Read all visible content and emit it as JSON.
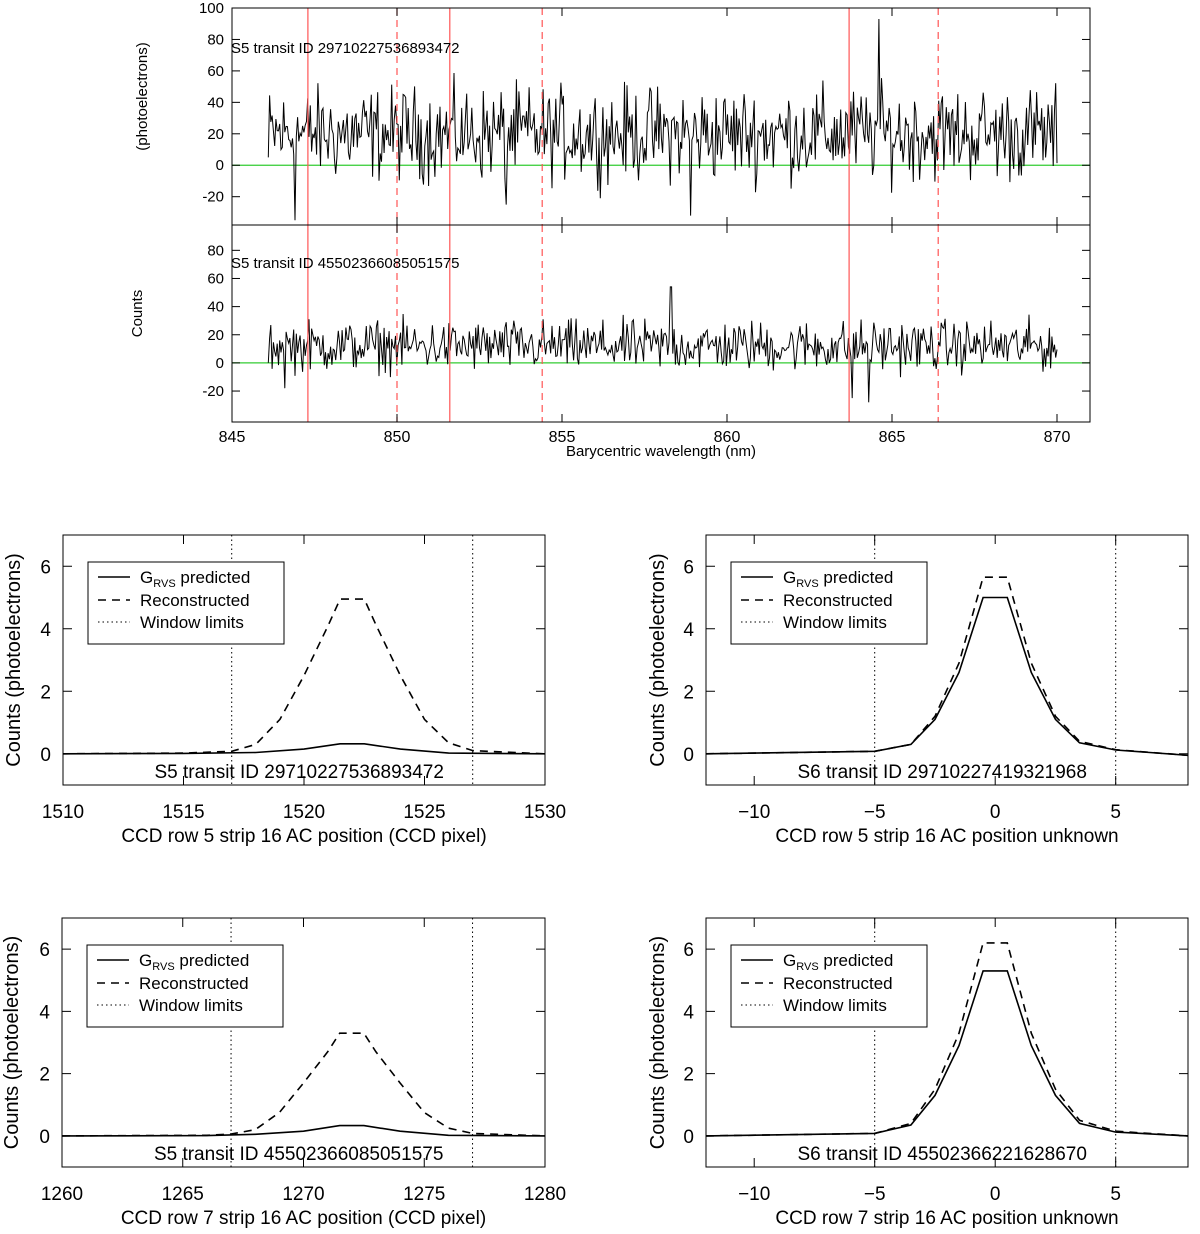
{
  "spectrum": {
    "xlabel": "Barycentric wavelength (nm)",
    "xlim": [
      845,
      871
    ],
    "xticks": [
      845,
      850,
      855,
      860,
      865,
      870
    ],
    "ref_lines_solid": [
      847.3,
      851.6,
      863.7
    ],
    "ref_lines_dashed": [
      850.0,
      854.4,
      866.4
    ],
    "colors": {
      "signal": "#000000",
      "zero_line": "#33cc33",
      "ref_line": "#ff5555"
    },
    "panels": [
      {
        "label": "S5 transit ID 29710227536893472",
        "ylabel": "(photoelectrons)",
        "ylim": [
          -38,
          100
        ],
        "yticks": [
          -20,
          0,
          20,
          40,
          60,
          80,
          100
        ],
        "x_start": 846.1,
        "x_end": 870.0,
        "noise_amplitude": 18,
        "spikes": [
          [
            846.9,
            -35
          ],
          [
            858.9,
            -32
          ],
          [
            864.6,
            93
          ],
          [
            853.3,
            -25
          ]
        ]
      },
      {
        "label": "S5 transit ID 45502366085051575",
        "ylabel": "Counts",
        "ylim": [
          -42,
          98
        ],
        "yticks": [
          -20,
          0,
          20,
          40,
          60,
          80
        ],
        "x_start": 846.1,
        "x_end": 870.0,
        "noise_amplitude": 11,
        "spikes": [
          [
            858.3,
            54
          ],
          [
            863.8,
            -25
          ],
          [
            864.3,
            -28
          ],
          [
            846.6,
            -18
          ]
        ]
      }
    ]
  },
  "profiles": {
    "ylabel": "Counts (photoelectrons)",
    "legend": {
      "g_prefix": "G",
      "g_sub": "RVS",
      "g_suffix": " predicted",
      "reconstructed": "Reconstructed",
      "window": "Window limits"
    },
    "panels": [
      {
        "id": "p1",
        "title": "S5 transit ID 29710227536893472",
        "xlabel": "CCD row 5 strip 16 AC position (CCD pixel)",
        "xlim": [
          1510,
          1530
        ],
        "xticks": [
          1510,
          1515,
          1520,
          1525,
          1530
        ],
        "ylim": [
          -1,
          7
        ],
        "yticks": [
          0,
          2,
          4,
          6
        ],
        "window": [
          1517,
          1527
        ],
        "predicted": {
          "x": [
            1510,
            1515,
            1518,
            1520,
            1521.5,
            1522.5,
            1524,
            1526,
            1530
          ],
          "y": [
            0,
            0.01,
            0.04,
            0.15,
            0.32,
            0.32,
            0.15,
            0.02,
            0
          ]
        },
        "reconstructed": {
          "x": [
            1510,
            1515,
            1517,
            1518,
            1519,
            1520,
            1521,
            1521.5,
            1522.5,
            1523,
            1524,
            1525,
            1526,
            1527,
            1530
          ],
          "y": [
            0,
            0.02,
            0.08,
            0.3,
            1.1,
            2.5,
            4.1,
            4.95,
            4.95,
            4.1,
            2.5,
            1.1,
            0.35,
            0.1,
            0
          ]
        }
      },
      {
        "id": "p2",
        "title": "S6 transit ID 29710227419321968",
        "xlabel": "CCD row 5 strip 16 AC position unknown",
        "xlim": [
          -12,
          8
        ],
        "xticks": [
          -10,
          -5,
          0,
          5
        ],
        "ylim": [
          -1,
          7
        ],
        "yticks": [
          0,
          2,
          4,
          6
        ],
        "window": [
          -5,
          5
        ],
        "predicted": {
          "x": [
            -12,
            -5,
            -3.5,
            -2.5,
            -1.5,
            -0.5,
            0.5,
            1.5,
            2.5,
            3.5,
            5,
            8
          ],
          "y": [
            0,
            0.08,
            0.3,
            1.1,
            2.6,
            5.0,
            5.0,
            2.6,
            1.1,
            0.35,
            0.12,
            -0.05
          ]
        },
        "reconstructed": {
          "x": [
            -12,
            -5,
            -3.5,
            -2.5,
            -1.5,
            -0.5,
            0.5,
            1.5,
            2.5,
            3.5,
            5,
            8
          ],
          "y": [
            0,
            0.08,
            0.3,
            1.2,
            2.9,
            5.65,
            5.65,
            2.9,
            1.2,
            0.4,
            0.13,
            -0.05
          ]
        }
      },
      {
        "id": "p3",
        "title": "S5 transit ID 45502366085051575",
        "xlabel": "CCD row 7 strip 16 AC position (CCD pixel)",
        "xlim": [
          1260,
          1280
        ],
        "xticks": [
          1260,
          1265,
          1270,
          1275,
          1280
        ],
        "ylim": [
          -1,
          7
        ],
        "yticks": [
          0,
          2,
          4,
          6
        ],
        "window": [
          1267,
          1277
        ],
        "predicted": {
          "x": [
            1260,
            1266,
            1268,
            1270,
            1271.5,
            1272.5,
            1274,
            1276,
            1280
          ],
          "y": [
            0,
            0.01,
            0.05,
            0.15,
            0.33,
            0.33,
            0.15,
            0.02,
            0
          ]
        },
        "reconstructed": {
          "x": [
            1260,
            1266,
            1267,
            1268,
            1269,
            1270,
            1271,
            1271.5,
            1272.5,
            1273,
            1274,
            1275,
            1276,
            1277,
            1280
          ],
          "y": [
            0,
            0.02,
            0.06,
            0.2,
            0.75,
            1.7,
            2.7,
            3.3,
            3.3,
            2.7,
            1.7,
            0.75,
            0.25,
            0.08,
            0
          ]
        }
      },
      {
        "id": "p4",
        "title": "S6 transit ID 45502366221628670",
        "xlabel": "CCD row 7 strip 16 AC position unknown",
        "xlim": [
          -12,
          8
        ],
        "xticks": [
          -10,
          -5,
          0,
          5
        ],
        "ylim": [
          -1,
          7
        ],
        "yticks": [
          0,
          2,
          4,
          6
        ],
        "window": [
          -5,
          5
        ],
        "predicted": {
          "x": [
            -12,
            -5,
            -3.5,
            -2.5,
            -1.5,
            -0.5,
            0.5,
            1.5,
            2.5,
            3.5,
            5,
            8
          ],
          "y": [
            0,
            0.08,
            0.35,
            1.3,
            2.9,
            5.3,
            5.3,
            2.9,
            1.3,
            0.4,
            0.12,
            0
          ]
        },
        "reconstructed": {
          "x": [
            -12,
            -5,
            -3.5,
            -2.5,
            -1.5,
            -0.5,
            0.5,
            1.5,
            2.5,
            3.5,
            5,
            8
          ],
          "y": [
            0,
            0.08,
            0.4,
            1.5,
            3.3,
            6.2,
            6.2,
            3.3,
            1.5,
            0.5,
            0.15,
            0
          ]
        }
      }
    ]
  },
  "chart_data": [
    {
      "type": "line",
      "title": "",
      "xlabel": "Barycentric wavelength (nm)",
      "ylabel": "(photoelectrons)",
      "xlim": [
        845,
        871
      ],
      "ylim": [
        -38,
        100
      ],
      "series": [
        {
          "name": "S5 transit ID 29710227536893472",
          "x": [
            846.1,
            870.0
          ],
          "y": [
            20,
            20
          ]
        }
      ]
    },
    {
      "type": "line",
      "title": "",
      "xlabel": "Barycentric wavelength (nm)",
      "ylabel": "Counts",
      "xlim": [
        845,
        871
      ],
      "ylim": [
        -42,
        98
      ],
      "series": [
        {
          "name": "S5 transit ID 45502366085051575",
          "x": [
            846.1,
            870.0
          ],
          "y": [
            12,
            12
          ]
        }
      ]
    },
    {
      "type": "line",
      "title": "S5 transit ID 29710227536893472",
      "xlabel": "CCD row 5 strip 16 AC position (CCD pixel)",
      "ylabel": "Counts (photoelectrons)",
      "xlim": [
        1510,
        1530
      ],
      "ylim": [
        -1,
        7
      ],
      "series": [
        {
          "name": "GRVS predicted",
          "peak": 0.32
        },
        {
          "name": "Reconstructed",
          "peak": 4.95
        }
      ]
    },
    {
      "type": "line",
      "title": "S6 transit ID 29710227419321968",
      "xlabel": "CCD row 5 strip 16 AC position unknown",
      "ylabel": "Counts (photoelectrons)",
      "xlim": [
        -12,
        8
      ],
      "ylim": [
        -1,
        7
      ],
      "series": [
        {
          "name": "GRVS predicted",
          "peak": 5.0
        },
        {
          "name": "Reconstructed",
          "peak": 5.65
        }
      ]
    },
    {
      "type": "line",
      "title": "S5 transit ID 45502366085051575",
      "xlabel": "CCD row 7 strip 16 AC position (CCD pixel)",
      "ylabel": "Counts (photoelectrons)",
      "xlim": [
        1260,
        1280
      ],
      "ylim": [
        -1,
        7
      ],
      "series": [
        {
          "name": "GRVS predicted",
          "peak": 0.33
        },
        {
          "name": "Reconstructed",
          "peak": 3.3
        }
      ]
    },
    {
      "type": "line",
      "title": "S6 transit ID 45502366221628670",
      "xlabel": "CCD row 7 strip 16 AC position unknown",
      "ylabel": "Counts (photoelectrons)",
      "xlim": [
        -12,
        8
      ],
      "ylim": [
        -1,
        7
      ],
      "series": [
        {
          "name": "GRVS predicted",
          "peak": 5.3
        },
        {
          "name": "Reconstructed",
          "peak": 6.2
        }
      ]
    }
  ]
}
